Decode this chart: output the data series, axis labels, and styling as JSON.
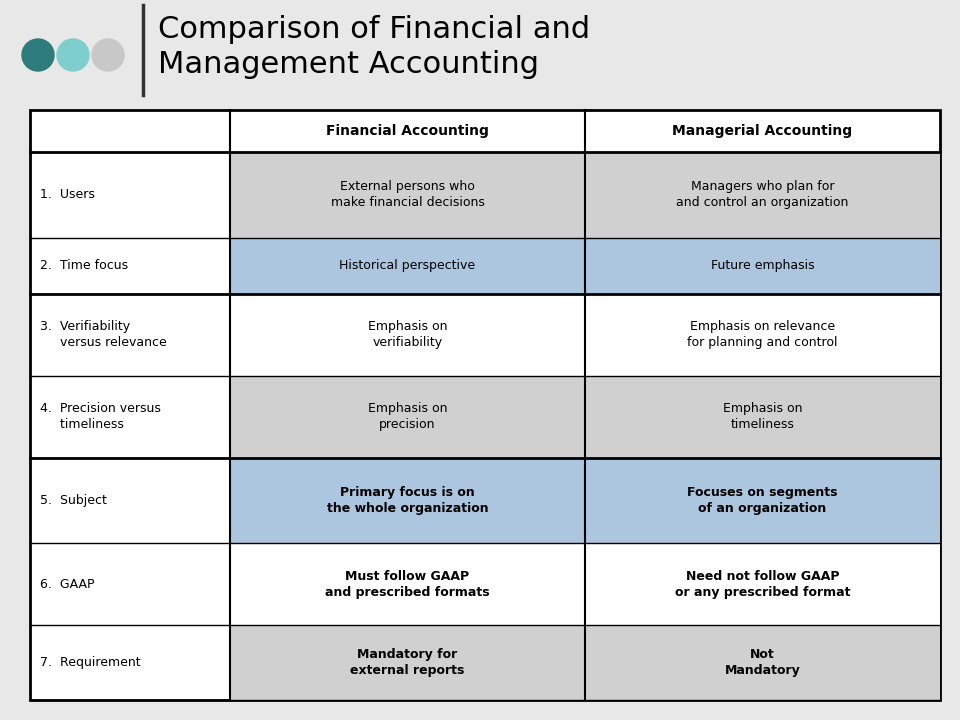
{
  "title_line1": "Comparison of Financial and",
  "title_line2": "Management Accounting",
  "title_fontsize": 22,
  "title_color": "#000000",
  "col_headers": [
    "Financial Accounting",
    "Managerial Accounting"
  ],
  "col_header_fontsize": 10,
  "row_labels": [
    "1.  Users",
    "2.  Time focus",
    "3.  Verifiability\n     versus relevance",
    "4.  Precision versus\n     timeliness",
    "5.  Subject",
    "6.  GAAP",
    "7.  Requirement"
  ],
  "financial_col": [
    "External persons who\nmake financial decisions",
    "Historical perspective",
    "Emphasis on\nverifiability",
    "Emphasis on\nprecision",
    "Primary focus is on\nthe whole organization",
    "Must follow GAAP\nand prescribed formats",
    "Mandatory for\nexternal reports"
  ],
  "managerial_col": [
    "Managers who plan for\nand control an organization",
    "Future emphasis",
    "Emphasis on relevance\nfor planning and control",
    "Emphasis on\ntimeliness",
    "Focuses on segments\nof an organization",
    "Need not follow GAAP\nor any prescribed format",
    "Not\nMandatory"
  ],
  "row_bg_colors": [
    "#d0d0d0",
    "#adc6e0",
    "#ffffff",
    "#d0d0d0",
    "#adc6e0",
    "#ffffff",
    "#d0d0d0"
  ],
  "bold_rows": [
    4,
    5,
    6
  ],
  "dots_colors": [
    "#2e7b7b",
    "#7ecece",
    "#c8c8c8"
  ],
  "bg_color": "#e8e8e8",
  "table_bg": "#ffffff",
  "cell_text_fontsize": 9
}
